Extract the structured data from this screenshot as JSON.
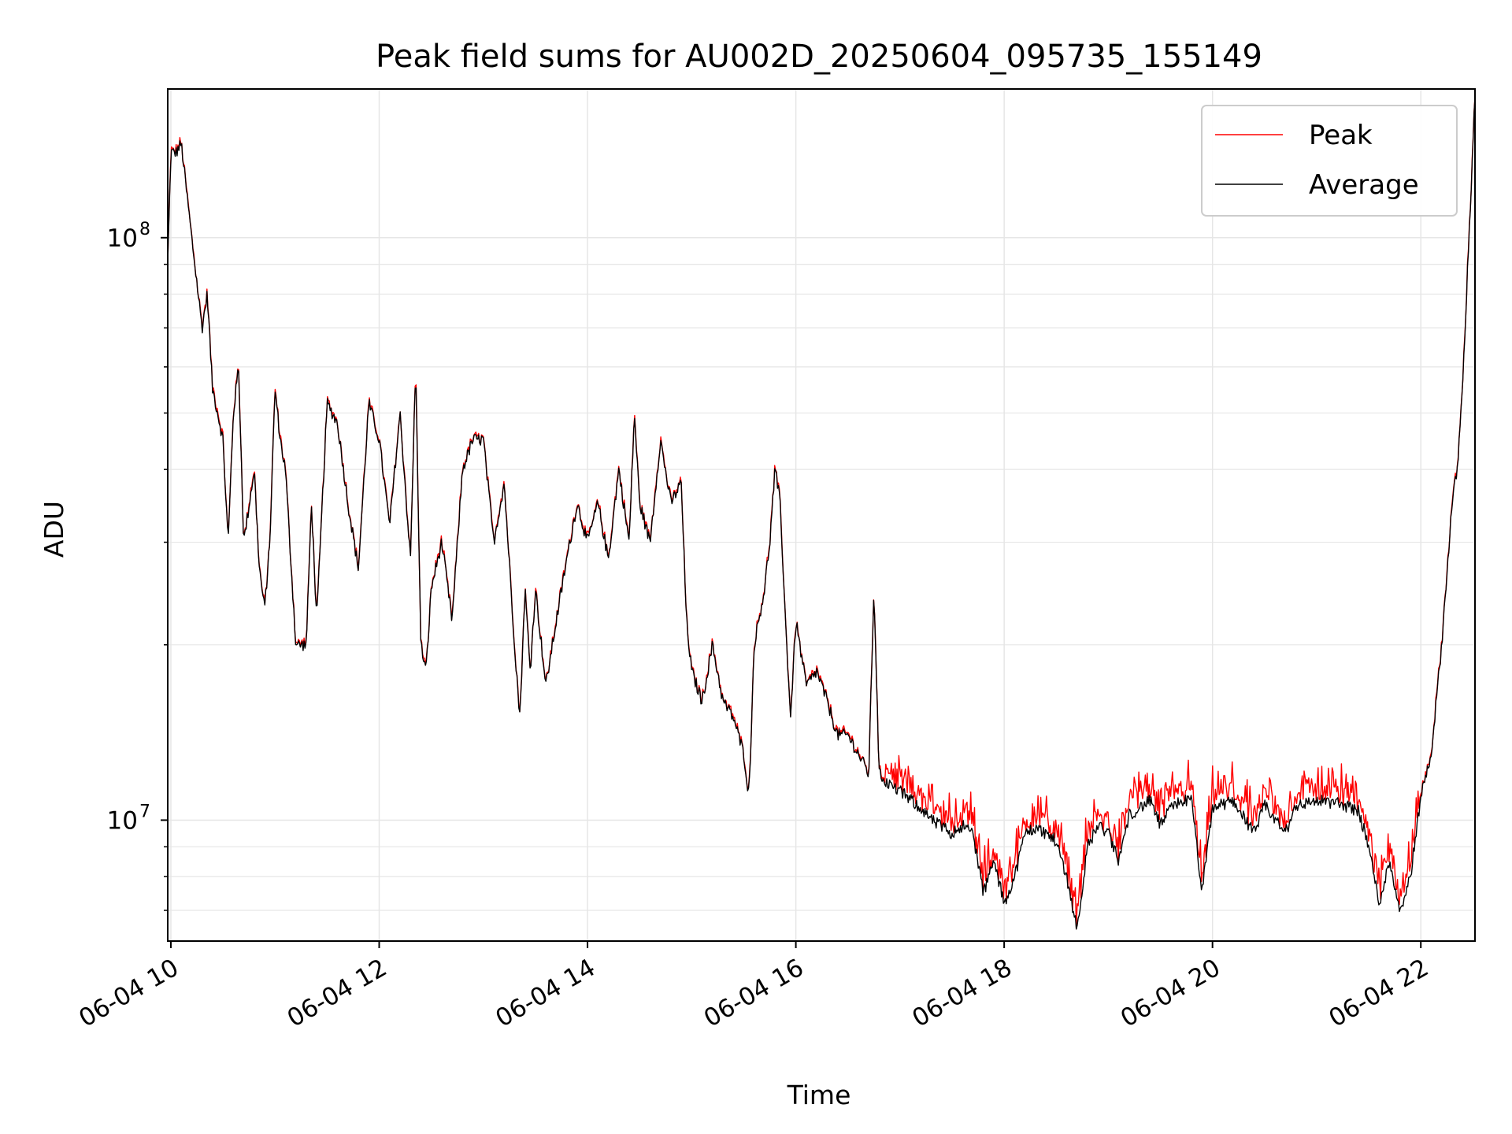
{
  "chart_data": {
    "type": "line",
    "title": "Peak field sums for AU002D_20250604_095735_155149",
    "xlabel": "Time",
    "ylabel": "ADU",
    "x_axis": {
      "type": "time",
      "range_hours": [
        9.97,
        22.52
      ],
      "ticks": [
        {
          "value": 10,
          "label": "06-04 10"
        },
        {
          "value": 12,
          "label": "06-04 12"
        },
        {
          "value": 14,
          "label": "06-04 14"
        },
        {
          "value": 16,
          "label": "06-04 16"
        },
        {
          "value": 18,
          "label": "06-04 18"
        },
        {
          "value": 20,
          "label": "06-04 20"
        },
        {
          "value": 22,
          "label": "06-04 22"
        }
      ],
      "tick_label_rotation_deg": -30
    },
    "y_axis": {
      "scale": "log",
      "range": [
        6200000,
        180000000
      ],
      "major_ticks": [
        {
          "value": 10000000,
          "base": "10",
          "exp": "7"
        },
        {
          "value": 100000000,
          "base": "10",
          "exp": "8"
        }
      ],
      "minor_ticks": [
        7000000,
        8000000,
        9000000,
        20000000,
        30000000,
        40000000,
        50000000,
        60000000,
        70000000,
        80000000,
        90000000
      ]
    },
    "grid": true,
    "legend": {
      "position": "top-right"
    },
    "colors": {
      "peak": "#ff0000",
      "average": "#000000",
      "grid": "#e6e6e6"
    },
    "average_anchor_points": [
      [
        9.97,
        90000000
      ],
      [
        10.0,
        140000000
      ],
      [
        10.05,
        140000000
      ],
      [
        10.1,
        145000000
      ],
      [
        10.2,
        100000000
      ],
      [
        10.3,
        70000000
      ],
      [
        10.35,
        80000000
      ],
      [
        10.4,
        55000000
      ],
      [
        10.45,
        50000000
      ],
      [
        10.5,
        45000000
      ],
      [
        10.55,
        30000000
      ],
      [
        10.6,
        50000000
      ],
      [
        10.65,
        60000000
      ],
      [
        10.7,
        30000000
      ],
      [
        10.8,
        40000000
      ],
      [
        10.85,
        27000000
      ],
      [
        10.9,
        23000000
      ],
      [
        10.95,
        30000000
      ],
      [
        11.0,
        55000000
      ],
      [
        11.05,
        45000000
      ],
      [
        11.1,
        40000000
      ],
      [
        11.2,
        20000000
      ],
      [
        11.3,
        20000000
      ],
      [
        11.35,
        35000000
      ],
      [
        11.4,
        22000000
      ],
      [
        11.5,
        52000000
      ],
      [
        11.6,
        48000000
      ],
      [
        11.7,
        35000000
      ],
      [
        11.8,
        27000000
      ],
      [
        11.9,
        52000000
      ],
      [
        12.0,
        45000000
      ],
      [
        12.1,
        32000000
      ],
      [
        12.2,
        50000000
      ],
      [
        12.3,
        28000000
      ],
      [
        12.35,
        60000000
      ],
      [
        12.4,
        20000000
      ],
      [
        12.45,
        18000000
      ],
      [
        12.5,
        25000000
      ],
      [
        12.6,
        30000000
      ],
      [
        12.7,
        22000000
      ],
      [
        12.8,
        40000000
      ],
      [
        12.9,
        45000000
      ],
      [
        13.0,
        45000000
      ],
      [
        13.1,
        30000000
      ],
      [
        13.2,
        38000000
      ],
      [
        13.3,
        20000000
      ],
      [
        13.35,
        15000000
      ],
      [
        13.4,
        25000000
      ],
      [
        13.45,
        18000000
      ],
      [
        13.5,
        25000000
      ],
      [
        13.6,
        17000000
      ],
      [
        13.7,
        22000000
      ],
      [
        13.8,
        28000000
      ],
      [
        13.9,
        35000000
      ],
      [
        14.0,
        30000000
      ],
      [
        14.1,
        35000000
      ],
      [
        14.2,
        28000000
      ],
      [
        14.3,
        40000000
      ],
      [
        14.4,
        30000000
      ],
      [
        14.45,
        50000000
      ],
      [
        14.5,
        35000000
      ],
      [
        14.6,
        30000000
      ],
      [
        14.7,
        45000000
      ],
      [
        14.8,
        35000000
      ],
      [
        14.9,
        38000000
      ],
      [
        14.95,
        22000000
      ],
      [
        15.0,
        18000000
      ],
      [
        15.1,
        16000000
      ],
      [
        15.2,
        20000000
      ],
      [
        15.3,
        16000000
      ],
      [
        15.4,
        15000000
      ],
      [
        15.5,
        13000000
      ],
      [
        15.55,
        11000000
      ],
      [
        15.6,
        20000000
      ],
      [
        15.7,
        25000000
      ],
      [
        15.75,
        30000000
      ],
      [
        15.8,
        40000000
      ],
      [
        15.85,
        35000000
      ],
      [
        15.9,
        22000000
      ],
      [
        15.95,
        15000000
      ],
      [
        16.0,
        22000000
      ],
      [
        16.1,
        17000000
      ],
      [
        16.2,
        18000000
      ],
      [
        16.3,
        16000000
      ],
      [
        16.4,
        14000000
      ],
      [
        16.5,
        14000000
      ],
      [
        16.6,
        13000000
      ],
      [
        16.7,
        12000000
      ],
      [
        16.75,
        25000000
      ],
      [
        16.8,
        12000000
      ],
      [
        16.9,
        11500000
      ],
      [
        17.0,
        11200000
      ],
      [
        17.2,
        10500000
      ],
      [
        17.3,
        10000000
      ],
      [
        17.5,
        9500000
      ],
      [
        17.6,
        9800000
      ],
      [
        17.7,
        9500000
      ],
      [
        17.8,
        7500000
      ],
      [
        17.9,
        8500000
      ],
      [
        18.0,
        7200000
      ],
      [
        18.1,
        8000000
      ],
      [
        18.2,
        9500000
      ],
      [
        18.3,
        9700000
      ],
      [
        18.4,
        9500000
      ],
      [
        18.5,
        9200000
      ],
      [
        18.6,
        8000000
      ],
      [
        18.7,
        6500000
      ],
      [
        18.8,
        9000000
      ],
      [
        18.9,
        9800000
      ],
      [
        19.0,
        9500000
      ],
      [
        19.1,
        8500000
      ],
      [
        19.2,
        10200000
      ],
      [
        19.3,
        10500000
      ],
      [
        19.4,
        10800000
      ],
      [
        19.5,
        9800000
      ],
      [
        19.6,
        10500000
      ],
      [
        19.7,
        10800000
      ],
      [
        19.8,
        10800000
      ],
      [
        19.9,
        7500000
      ],
      [
        20.0,
        10500000
      ],
      [
        20.2,
        10800000
      ],
      [
        20.4,
        9500000
      ],
      [
        20.5,
        10600000
      ],
      [
        20.7,
        9500000
      ],
      [
        20.8,
        10600000
      ],
      [
        21.0,
        10800000
      ],
      [
        21.2,
        10700000
      ],
      [
        21.4,
        10400000
      ],
      [
        21.5,
        9000000
      ],
      [
        21.6,
        7200000
      ],
      [
        21.7,
        8500000
      ],
      [
        21.8,
        7000000
      ],
      [
        21.9,
        8000000
      ],
      [
        22.0,
        11000000
      ],
      [
        22.1,
        13000000
      ],
      [
        22.2,
        20000000
      ],
      [
        22.3,
        35000000
      ],
      [
        22.35,
        40000000
      ],
      [
        22.4,
        55000000
      ],
      [
        22.52,
        175000000
      ]
    ]
  },
  "legend_entries": {
    "peak": "Peak",
    "average": "Average"
  }
}
